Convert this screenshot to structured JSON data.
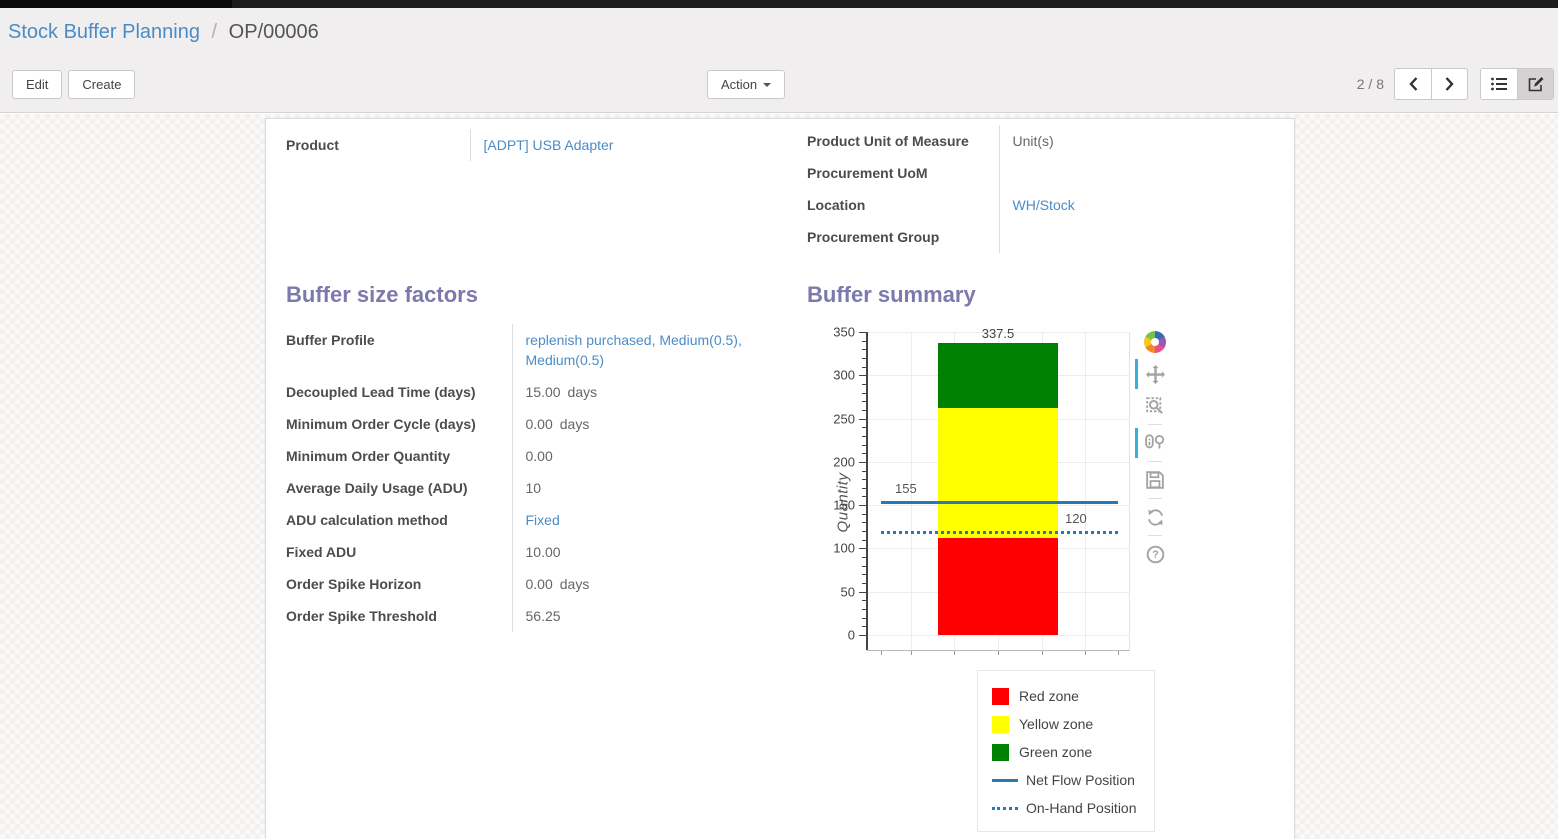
{
  "breadcrumb": {
    "parent": "Stock Buffer Planning",
    "separator": "/",
    "current": "OP/00006"
  },
  "controls": {
    "edit_label": "Edit",
    "create_label": "Create",
    "action_label": "Action",
    "pager": "2 / 8",
    "prev_icon": "‹",
    "next_icon": "›"
  },
  "form": {
    "group_a": [
      {
        "label": "Product",
        "value": "[ADPT] USB Adapter",
        "link": true
      }
    ],
    "group_b": [
      {
        "label": "Product Unit of Measure",
        "value": "Unit(s)"
      },
      {
        "label": "Procurement UoM",
        "value": ""
      },
      {
        "label": "Location",
        "value": "WH/Stock",
        "link": true
      },
      {
        "label": "Procurement Group",
        "value": ""
      }
    ],
    "factors": {
      "title": "Buffer size factors",
      "fields": [
        {
          "label": "Buffer Profile",
          "value": "replenish purchased, Medium(0.5), Medium(0.5)",
          "link": true
        },
        {
          "label": "Decoupled Lead Time (days)",
          "value": "15.00",
          "suffix": "days"
        },
        {
          "label": "Minimum Order Cycle (days)",
          "value": "0.00",
          "suffix": "days"
        },
        {
          "label": "Minimum Order Quantity",
          "value": "0.00"
        },
        {
          "label": "Average Daily Usage (ADU)",
          "value": "10"
        },
        {
          "label": "ADU calculation method",
          "value": "Fixed",
          "link": true
        },
        {
          "label": "Fixed ADU",
          "value": "10.00"
        },
        {
          "label": "Order Spike Horizon",
          "value": "0.00",
          "suffix": "days"
        },
        {
          "label": "Order Spike Threshold",
          "value": "56.25"
        }
      ]
    },
    "summary_title": "Buffer summary"
  },
  "chart_data": {
    "type": "bar",
    "title": "",
    "xlabel": "",
    "ylabel": "Quantity",
    "ylim": [
      0,
      350
    ],
    "ytick_step": 50,
    "yminor_step": 10,
    "grid": true,
    "zones": [
      {
        "name": "Red zone",
        "from": 0,
        "to": 112.5,
        "color": "#ff0000",
        "label": "112.5"
      },
      {
        "name": "Yellow zone",
        "from": 112.5,
        "to": 262.5,
        "color": "#ffff00",
        "label": "262.5"
      },
      {
        "name": "Green zone",
        "from": 262.5,
        "to": 337.5,
        "color": "#008000",
        "label": "337.5"
      }
    ],
    "lines": [
      {
        "name": "Net Flow Position",
        "value": 155,
        "style": "solid",
        "color": "#2878b5",
        "label": "155",
        "label_side": "left"
      },
      {
        "name": "On-Hand Position",
        "value": 120,
        "style": "dotted",
        "color": "#2878b5",
        "label": "120",
        "label_side": "right"
      }
    ],
    "legend_position": "below-right",
    "legend": [
      {
        "text": "Red zone",
        "swatch": "box",
        "color": "#ff0000"
      },
      {
        "text": "Yellow zone",
        "swatch": "box",
        "color": "#ffff00"
      },
      {
        "text": "Green zone",
        "swatch": "box",
        "color": "#008000"
      },
      {
        "text": "Net Flow Position",
        "swatch": "line-solid",
        "color": "#2878b5"
      },
      {
        "text": "On-Hand Position",
        "swatch": "line-dotted",
        "color": "#2878b5"
      }
    ]
  },
  "modebar": [
    {
      "name": "plotly-logo-icon",
      "active": false,
      "divider": false
    },
    {
      "name": "pan-icon",
      "active": true,
      "divider": false
    },
    {
      "name": "box-zoom-icon",
      "active": false,
      "divider": false
    },
    {
      "name": "compare-hover-icon",
      "active": true,
      "divider": true
    },
    {
      "name": "save-icon",
      "active": false,
      "divider": true
    },
    {
      "name": "autoscale-icon",
      "active": false,
      "divider": true
    },
    {
      "name": "help-icon",
      "active": false,
      "divider": true
    }
  ]
}
